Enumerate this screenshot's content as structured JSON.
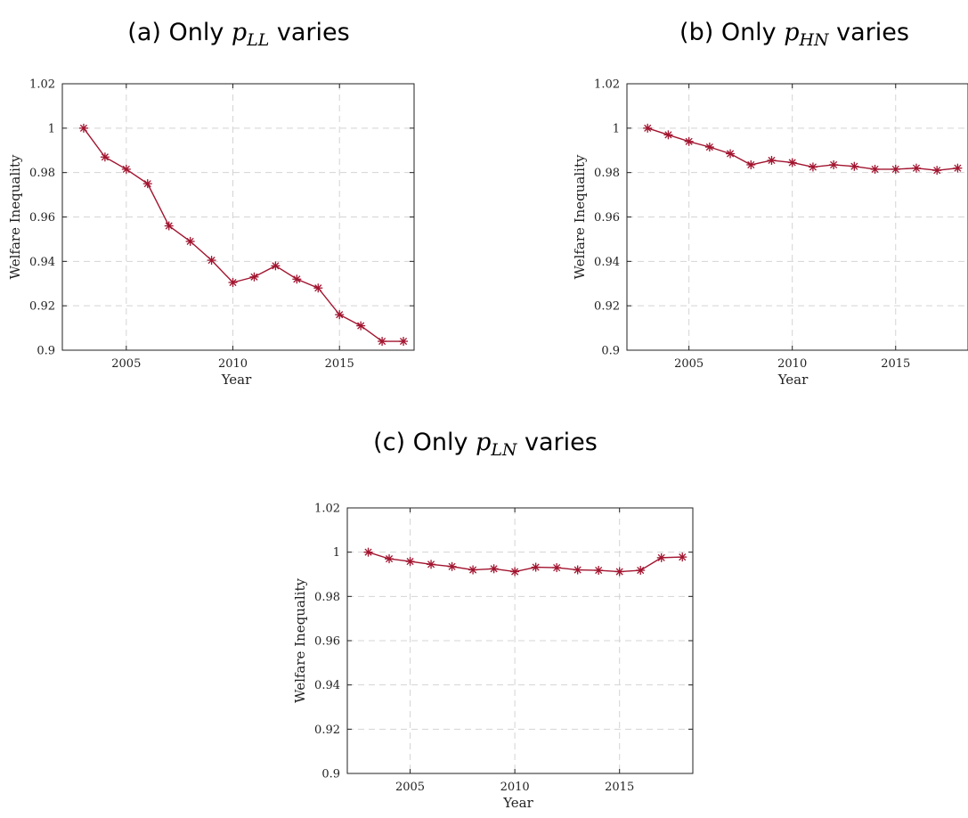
{
  "colors": {
    "series": "#a2142f"
  },
  "chart_data": [
    {
      "type": "line",
      "title": {
        "prefix": "(a) Only ",
        "var": "p",
        "sub": "LL",
        "suffix": " varies"
      },
      "xlabel": "Year",
      "ylabel": "Welfare Inequality",
      "xlim": [
        2002,
        2018.5
      ],
      "ylim": [
        0.9,
        1.02
      ],
      "xticks": [
        2005,
        2010,
        2015
      ],
      "yticks": [
        0.9,
        0.92,
        0.94,
        0.96,
        0.98,
        1,
        1.02
      ],
      "ytick_labels": [
        "0.9",
        "0.92",
        "0.94",
        "0.96",
        "0.98",
        "1",
        "1.02"
      ],
      "grid": true,
      "x": [
        2003,
        2004,
        2005,
        2006,
        2007,
        2008,
        2009,
        2010,
        2011,
        2012,
        2013,
        2014,
        2015,
        2016,
        2017,
        2018
      ],
      "y": [
        1.0,
        0.987,
        0.9815,
        0.975,
        0.956,
        0.949,
        0.9405,
        0.9305,
        0.933,
        0.938,
        0.932,
        0.928,
        0.916,
        0.911,
        0.904,
        0.904
      ]
    },
    {
      "type": "line",
      "title": {
        "prefix": "(b) Only ",
        "var": "p",
        "sub": "HN",
        "suffix": " varies"
      },
      "xlabel": "Year",
      "ylabel": "Welfare Inequality",
      "xlim": [
        2002,
        2018.5
      ],
      "ylim": [
        0.9,
        1.02
      ],
      "xticks": [
        2005,
        2010,
        2015
      ],
      "yticks": [
        0.9,
        0.92,
        0.94,
        0.96,
        0.98,
        1,
        1.02
      ],
      "ytick_labels": [
        "0.9",
        "0.92",
        "0.94",
        "0.96",
        "0.98",
        "1",
        "1.02"
      ],
      "grid": true,
      "x": [
        2003,
        2004,
        2005,
        2006,
        2007,
        2008,
        2009,
        2010,
        2011,
        2012,
        2013,
        2014,
        2015,
        2016,
        2017,
        2018
      ],
      "y": [
        1.0,
        0.997,
        0.994,
        0.9915,
        0.9885,
        0.9835,
        0.9855,
        0.9845,
        0.9825,
        0.9835,
        0.9828,
        0.9815,
        0.9815,
        0.982,
        0.981,
        0.982
      ]
    },
    {
      "type": "line",
      "title": {
        "prefix": "(c) Only ",
        "var": "p",
        "sub": "LN",
        "suffix": " varies"
      },
      "xlabel": "Year",
      "ylabel": "Welfare Inequality",
      "xlim": [
        2002,
        2018.5
      ],
      "ylim": [
        0.9,
        1.02
      ],
      "xticks": [
        2005,
        2010,
        2015
      ],
      "yticks": [
        0.9,
        0.92,
        0.94,
        0.96,
        0.98,
        1,
        1.02
      ],
      "ytick_labels": [
        "0.9",
        "0.92",
        "0.94",
        "0.96",
        "0.98",
        "1",
        "1.02"
      ],
      "grid": true,
      "x": [
        2003,
        2004,
        2005,
        2006,
        2007,
        2008,
        2009,
        2010,
        2011,
        2012,
        2013,
        2014,
        2015,
        2016,
        2017,
        2018
      ],
      "y": [
        1.0,
        0.997,
        0.9958,
        0.9945,
        0.9935,
        0.992,
        0.9925,
        0.9912,
        0.9932,
        0.993,
        0.992,
        0.9918,
        0.9912,
        0.9918,
        0.9975,
        0.9978
      ]
    }
  ]
}
